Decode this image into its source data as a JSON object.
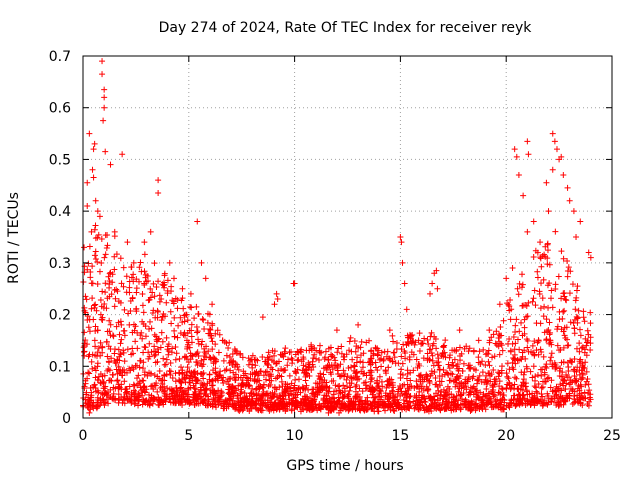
{
  "chart_data": {
    "type": "scatter",
    "title": "Day 274 of 2024, Rate Of TEC Index for receiver reyk",
    "xlabel": "GPS time / hours",
    "ylabel": "ROTI / TECUs",
    "xlim": [
      0,
      25
    ],
    "ylim": [
      0,
      0.7
    ],
    "xticks": [
      0,
      5,
      10,
      15,
      20,
      25
    ],
    "yticks": [
      0,
      0.1,
      0.2,
      0.3,
      0.4,
      0.5,
      0.6,
      0.7
    ],
    "xtick_labels": [
      "0",
      "5",
      "10",
      "15",
      "20",
      "25"
    ],
    "ytick_labels": [
      "0",
      "0.1",
      "0.2",
      "0.3",
      "0.4",
      "0.5",
      "0.6",
      "0.7"
    ],
    "grid": true,
    "marker": "+",
    "color": "#ff0000",
    "envelope": {
      "x": [
        0,
        0.5,
        1,
        1.5,
        2,
        3,
        4,
        5,
        6,
        7,
        8,
        9,
        10,
        11,
        12,
        13,
        14,
        15,
        16,
        17,
        18,
        19,
        19.5,
        20,
        20.5,
        21,
        21.5,
        22,
        22.5,
        23,
        23.5,
        24
      ],
      "upper": [
        0.3,
        0.38,
        0.38,
        0.36,
        0.3,
        0.32,
        0.28,
        0.22,
        0.2,
        0.14,
        0.12,
        0.13,
        0.14,
        0.14,
        0.15,
        0.15,
        0.15,
        0.16,
        0.17,
        0.16,
        0.15,
        0.14,
        0.17,
        0.22,
        0.26,
        0.3,
        0.33,
        0.36,
        0.36,
        0.3,
        0.25,
        0.2
      ],
      "lower": [
        0.02,
        0.02,
        0.03,
        0.03,
        0.03,
        0.03,
        0.03,
        0.03,
        0.03,
        0.02,
        0.02,
        0.02,
        0.02,
        0.02,
        0.02,
        0.02,
        0.02,
        0.02,
        0.02,
        0.02,
        0.02,
        0.02,
        0.02,
        0.02,
        0.03,
        0.03,
        0.03,
        0.03,
        0.03,
        0.03,
        0.03,
        0.03
      ]
    },
    "outliers": [
      [
        0.9,
        0.69
      ],
      [
        0.9,
        0.665
      ],
      [
        1.0,
        0.635
      ],
      [
        1.0,
        0.62
      ],
      [
        1.0,
        0.6
      ],
      [
        0.95,
        0.575
      ],
      [
        0.3,
        0.55
      ],
      [
        0.55,
        0.53
      ],
      [
        0.5,
        0.52
      ],
      [
        0.45,
        0.48
      ],
      [
        0.5,
        0.465
      ],
      [
        0.2,
        0.455
      ],
      [
        1.05,
        0.515
      ],
      [
        1.3,
        0.49
      ],
      [
        1.85,
        0.51
      ],
      [
        0.2,
        0.41
      ],
      [
        0.6,
        0.42
      ],
      [
        3.55,
        0.46
      ],
      [
        3.55,
        0.435
      ],
      [
        3.2,
        0.36
      ],
      [
        2.9,
        0.34
      ],
      [
        5.4,
        0.38
      ],
      [
        5.6,
        0.3
      ],
      [
        5.8,
        0.27
      ],
      [
        9.05,
        0.22
      ],
      [
        9.15,
        0.24
      ],
      [
        9.2,
        0.23
      ],
      [
        9.95,
        0.26
      ],
      [
        10.0,
        0.26
      ],
      [
        8.5,
        0.195
      ],
      [
        12.0,
        0.17
      ],
      [
        13.0,
        0.18
      ],
      [
        14.5,
        0.17
      ],
      [
        15.0,
        0.35
      ],
      [
        15.05,
        0.34
      ],
      [
        15.1,
        0.3
      ],
      [
        15.2,
        0.26
      ],
      [
        15.3,
        0.21
      ],
      [
        16.5,
        0.26
      ],
      [
        16.6,
        0.28
      ],
      [
        16.7,
        0.285
      ],
      [
        16.75,
        0.25
      ],
      [
        16.4,
        0.24
      ],
      [
        20.4,
        0.52
      ],
      [
        20.5,
        0.505
      ],
      [
        21.0,
        0.535
      ],
      [
        21.05,
        0.51
      ],
      [
        20.6,
        0.47
      ],
      [
        20.8,
        0.43
      ],
      [
        21.3,
        0.38
      ],
      [
        21.9,
        0.455
      ],
      [
        22.2,
        0.55
      ],
      [
        22.3,
        0.535
      ],
      [
        22.4,
        0.52
      ],
      [
        22.5,
        0.5
      ],
      [
        22.2,
        0.48
      ],
      [
        22.6,
        0.505
      ],
      [
        22.7,
        0.47
      ],
      [
        22.9,
        0.445
      ],
      [
        23.0,
        0.42
      ],
      [
        23.2,
        0.4
      ],
      [
        23.5,
        0.38
      ],
      [
        23.9,
        0.32
      ],
      [
        24.0,
        0.31
      ],
      [
        21.0,
        0.36
      ],
      [
        20.0,
        0.27
      ],
      [
        20.3,
        0.29
      ],
      [
        21.6,
        0.34
      ],
      [
        22.0,
        0.4
      ],
      [
        23.3,
        0.35
      ],
      [
        0.05,
        0.33
      ],
      [
        0.4,
        0.36
      ],
      [
        0.7,
        0.4
      ],
      [
        0.8,
        0.39
      ],
      [
        1.5,
        0.36
      ],
      [
        2.1,
        0.34
      ],
      [
        2.4,
        0.3
      ],
      [
        4.1,
        0.3
      ],
      [
        4.3,
        0.27
      ],
      [
        6.1,
        0.22
      ],
      [
        4.7,
        0.25
      ],
      [
        5.1,
        0.24
      ],
      [
        6.6,
        0.15
      ],
      [
        7.2,
        0.13
      ],
      [
        11.2,
        0.14
      ],
      [
        17.8,
        0.17
      ],
      [
        18.7,
        0.15
      ],
      [
        19.2,
        0.17
      ],
      [
        19.7,
        0.22
      ],
      [
        11.6,
        0.01
      ],
      [
        12.1,
        0.01
      ],
      [
        0.3,
        0.01
      ]
    ]
  }
}
